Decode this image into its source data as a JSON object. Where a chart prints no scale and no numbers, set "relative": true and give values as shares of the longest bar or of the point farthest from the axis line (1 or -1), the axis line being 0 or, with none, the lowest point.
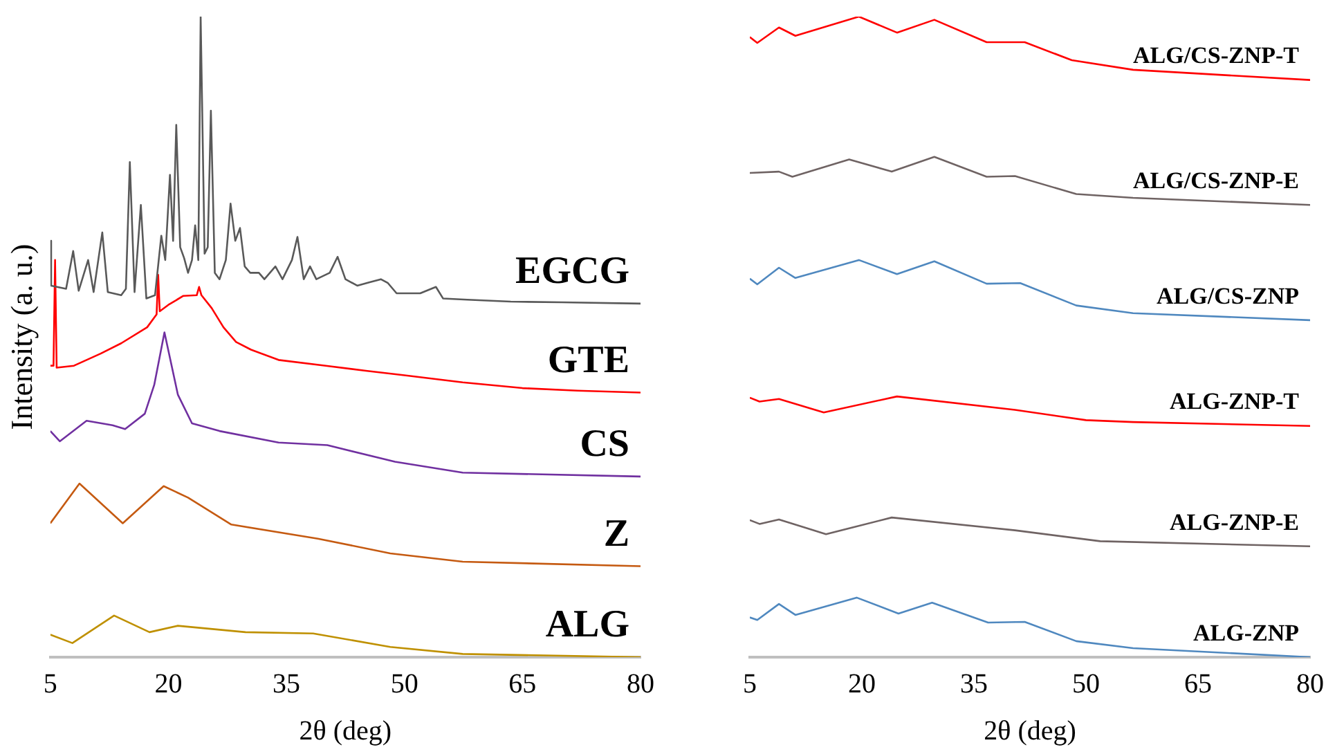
{
  "chart_data": [
    {
      "type": "line",
      "relative": true,
      "xlabel": "2θ (deg)",
      "ylabel": "Intensity (a. u.)",
      "xlim": [
        5,
        80
      ],
      "xticks": [
        5,
        20,
        35,
        50,
        65,
        80
      ],
      "marker": "none",
      "series": [
        {
          "name": "EGCG",
          "color": "#595959",
          "x": [
            5,
            5.1,
            7.0,
            7.9,
            8.6,
            9.8,
            10.5,
            11.6,
            12.3,
            14.0,
            14.6,
            15.1,
            15.7,
            16.5,
            17.2,
            18.3,
            19.1,
            19.6,
            20.2,
            20.6,
            21.0,
            21.5,
            22.0,
            22.5,
            23.0,
            23.4,
            23.8,
            24.1,
            24.6,
            25.0,
            25.4,
            25.9,
            26.5,
            27.3,
            27.9,
            28.5,
            29.1,
            29.7,
            30.4,
            31.5,
            32.2,
            33.6,
            34.5,
            35.7,
            36.4,
            37.2,
            38.0,
            38.8,
            40.5,
            41.5,
            42.5,
            44,
            45.5,
            47.0,
            47.9,
            49,
            52,
            54.0,
            54.9,
            58,
            63.5,
            70,
            80
          ],
          "values": [
            0.65,
            0.58,
            0.575,
            0.634,
            0.572,
            0.62,
            0.57,
            0.663,
            0.57,
            0.565,
            0.575,
            0.773,
            0.57,
            0.706,
            0.56,
            0.565,
            0.658,
            0.62,
            0.753,
            0.65,
            0.831,
            0.64,
            0.623,
            0.6,
            0.62,
            0.674,
            0.62,
            1.0,
            0.63,
            0.64,
            0.853,
            0.6,
            0.59,
            0.62,
            0.708,
            0.65,
            0.67,
            0.61,
            0.6,
            0.6,
            0.59,
            0.61,
            0.59,
            0.62,
            0.656,
            0.59,
            0.61,
            0.59,
            0.6,
            0.625,
            0.59,
            0.58,
            0.585,
            0.59,
            0.584,
            0.568,
            0.568,
            0.578,
            0.56,
            0.558,
            0.555,
            0.554,
            0.552
          ]
        },
        {
          "name": "GTE",
          "color": "#ff0000",
          "x": [
            5,
            5.4,
            5.6,
            5.8,
            8,
            11.4,
            14,
            17.3,
            18.5,
            18.7,
            18.9,
            20,
            21.9,
            23.6,
            23.9,
            24.2,
            25.5,
            27,
            28.6,
            30.5,
            34,
            40,
            45.1,
            50,
            57.4,
            65,
            72,
            80
          ],
          "values": [
            0.455,
            0.455,
            0.62,
            0.452,
            0.455,
            0.474,
            0.49,
            0.515,
            0.535,
            0.597,
            0.54,
            0.55,
            0.564,
            0.565,
            0.578,
            0.565,
            0.545,
            0.515,
            0.492,
            0.48,
            0.464,
            0.455,
            0.447,
            0.44,
            0.429,
            0.42,
            0.416,
            0.413
          ]
        },
        {
          "name": "CS",
          "color": "#7030a0",
          "x": [
            5,
            6.2,
            9.6,
            12.9,
            14.5,
            17.0,
            18.2,
            19.5,
            21.2,
            23.0,
            26.5,
            34.0,
            40.2,
            48.8,
            57.4,
            80
          ],
          "values": [
            0.353,
            0.337,
            0.369,
            0.362,
            0.356,
            0.38,
            0.425,
            0.507,
            0.41,
            0.365,
            0.353,
            0.335,
            0.331,
            0.305,
            0.288,
            0.282
          ]
        },
        {
          "name": "Z",
          "color": "#c55a11",
          "x": [
            5,
            8.7,
            14.2,
            19.4,
            22.5,
            28.0,
            39.0,
            48.2,
            57.4,
            80
          ],
          "values": [
            0.209,
            0.271,
            0.209,
            0.267,
            0.249,
            0.207,
            0.185,
            0.162,
            0.149,
            0.142
          ]
        },
        {
          "name": "ALG",
          "color": "#bf9000",
          "x": [
            5,
            7.8,
            13.1,
            17.6,
            21.2,
            29.8,
            38.4,
            48.2,
            57.4,
            80
          ],
          "values": [
            0.035,
            0.022,
            0.065,
            0.039,
            0.049,
            0.039,
            0.037,
            0.016,
            0.005,
            0
          ]
        }
      ]
    },
    {
      "type": "line",
      "relative": true,
      "xlabel": "2θ (deg)",
      "xlim": [
        5,
        80
      ],
      "xticks": [
        5,
        20,
        35,
        50,
        65,
        80
      ],
      "marker": "none",
      "series": [
        {
          "name": "ALG/CS-ZNP-T",
          "color": "#ff0000",
          "x": [
            5,
            6.0,
            8.9,
            11.1,
            19.6,
            24.7,
            29.7,
            36.7,
            41.8,
            48.1,
            56.3,
            80
          ],
          "values": [
            0.968,
            0.959,
            0.983,
            0.97,
            1.0,
            0.975,
            0.995,
            0.96,
            0.96,
            0.932,
            0.917,
            0.901
          ]
        },
        {
          "name": "ALG/CS-ZNP-E",
          "color": "#6f6363",
          "x": [
            5,
            8.9,
            10.7,
            18.3,
            24.0,
            29.7,
            36.7,
            40.5,
            48.7,
            56.3,
            80
          ],
          "values": [
            0.756,
            0.758,
            0.75,
            0.777,
            0.758,
            0.781,
            0.75,
            0.751,
            0.723,
            0.717,
            0.706
          ]
        },
        {
          "name": "ALG/CS-ZNP",
          "color": "#4f88bf",
          "x": [
            5,
            6,
            8.9,
            11.1,
            19.6,
            24.7,
            29.7,
            36.7,
            41.2,
            48.7,
            56.3,
            80
          ],
          "values": [
            0.591,
            0.582,
            0.608,
            0.592,
            0.62,
            0.598,
            0.618,
            0.583,
            0.584,
            0.549,
            0.537,
            0.526
          ]
        },
        {
          "name": "ALG-ZNP-T",
          "color": "#ff0000",
          "x": [
            5,
            6.3,
            8.9,
            14.9,
            24.7,
            40.5,
            50,
            56.3,
            80
          ],
          "values": [
            0.405,
            0.399,
            0.403,
            0.382,
            0.407,
            0.386,
            0.37,
            0.367,
            0.361
          ]
        },
        {
          "name": "ALG-ZNP-E",
          "color": "#6f6363",
          "x": [
            5,
            6.3,
            8.9,
            15.2,
            24.0,
            40.5,
            51.9,
            80
          ],
          "values": [
            0.214,
            0.208,
            0.215,
            0.192,
            0.218,
            0.198,
            0.181,
            0.173
          ]
        },
        {
          "name": "ALG-ZNP",
          "color": "#4f88bf",
          "x": [
            5,
            6,
            8.9,
            11.1,
            19.3,
            24.9,
            29.4,
            36.9,
            41.8,
            48.7,
            56.3,
            80
          ],
          "values": [
            0.062,
            0.058,
            0.083,
            0.066,
            0.093,
            0.068,
            0.085,
            0.054,
            0.055,
            0.025,
            0.014,
            0
          ]
        }
      ]
    }
  ]
}
